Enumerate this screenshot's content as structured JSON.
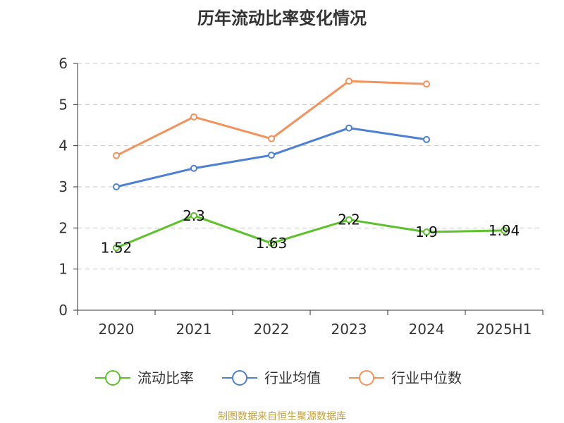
{
  "chart_data": {
    "type": "line",
    "title": "历年流动比率变化情况",
    "categories": [
      "2020",
      "2021",
      "2022",
      "2023",
      "2024",
      "2025H1"
    ],
    "ylim": [
      0,
      6
    ],
    "yticks": [
      0,
      1,
      2,
      3,
      4,
      5,
      6
    ],
    "grid": true,
    "grid_style": "dashed-horizontal",
    "legend_position": "bottom",
    "series": [
      {
        "name": "流动比率",
        "color": "#5cc12a",
        "values": [
          1.52,
          2.3,
          1.63,
          2.2,
          1.9,
          1.94
        ],
        "data_labels": [
          "1.52",
          "2.3",
          "1.63",
          "2.2",
          "1.9",
          "1.94"
        ]
      },
      {
        "name": "行业均值",
        "color": "#4e7fd6",
        "values": [
          3.0,
          3.45,
          3.77,
          4.43,
          4.15,
          null
        ]
      },
      {
        "name": "行业中位数",
        "color": "#f5925c",
        "values": [
          3.76,
          4.7,
          4.17,
          5.57,
          5.5,
          null
        ]
      }
    ],
    "source": "制图数据来自恒生聚源数据库",
    "source_color": "#c9a13b"
  }
}
